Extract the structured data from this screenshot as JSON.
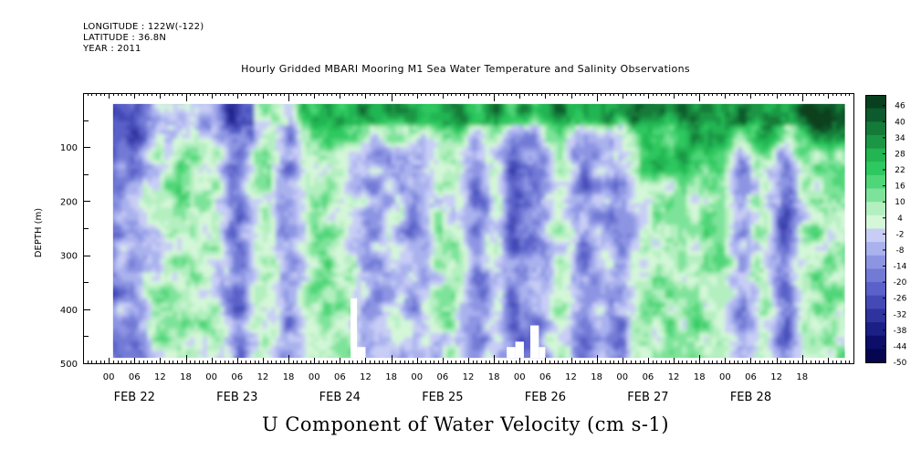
{
  "header": {
    "longitude": "LONGITUDE : 122W(-122)",
    "latitude": "LATITUDE : 36.8N",
    "year": "YEAR : 2011"
  },
  "chart_data": {
    "type": "heatmap",
    "title": "Hourly Gridded MBARI Mooring M1 Sea Water Temperature and Salinity Observations",
    "xlabel": "U Component of Water Velocity (cm s-1)",
    "ylabel": "DEPTH (m)",
    "x_range_hours": [
      0,
      180
    ],
    "data_x_range_hours": [
      7,
      178
    ],
    "ylim": [
      500,
      0
    ],
    "data_depth_range": [
      20,
      490
    ],
    "y_ticks": [
      100,
      200,
      300,
      400,
      500
    ],
    "x_hour_labels": [
      "00",
      "06",
      "12",
      "18",
      "00",
      "06",
      "12",
      "18",
      "00",
      "06",
      "12",
      "18",
      "00",
      "06",
      "12",
      "18",
      "00",
      "06",
      "12",
      "18",
      "00",
      "06",
      "12",
      "18",
      "00",
      "06",
      "12",
      "18"
    ],
    "x_date_labels": [
      "FEB 22",
      "FEB 23",
      "FEB 24",
      "FEB 25",
      "FEB 26",
      "FEB 27",
      "FEB 28"
    ],
    "colorbar": {
      "levels": [
        46,
        40,
        34,
        28,
        22,
        16,
        10,
        4,
        -2,
        -8,
        -14,
        -20,
        -26,
        -32,
        -38,
        -44,
        -50
      ],
      "min": -50,
      "max": 50,
      "colors": [
        "#08401f",
        "#0d5a2c",
        "#137a38",
        "#1a9645",
        "#22b552",
        "#2dc85f",
        "#4fd678",
        "#7ee39a",
        "#b4efc0",
        "#d4f7d8",
        "#c8cdf5",
        "#aab2ee",
        "#8d95e3",
        "#727ad6",
        "#5a61c8",
        "#4349b5",
        "#2f339e",
        "#1c1f86",
        "#0c0e6a",
        "#050550"
      ]
    },
    "pattern": {
      "dominant_sign": "positive (green) with vertical negative (blue) bands",
      "strong_positive_near_surface": "FEB 24 to FEB 28",
      "negative_bands_hours": [
        6,
        12,
        36,
        48,
        68,
        78,
        92,
        100,
        105,
        117,
        125,
        154,
        164
      ]
    }
  }
}
